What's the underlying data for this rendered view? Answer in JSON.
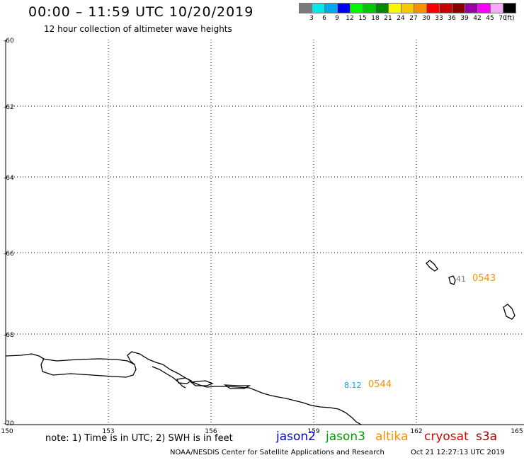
{
  "header": {
    "title": "00:00 – 11:59 UTC 10/20/2019",
    "subtitle": "12 hour collection of altimeter wave heights"
  },
  "colorbar": {
    "colors": [
      "#7b7b7b",
      "#00e8e8",
      "#00a8f0",
      "#0000f8",
      "#00f800",
      "#00c800",
      "#008800",
      "#f8f800",
      "#f8c800",
      "#f89000",
      "#f80000",
      "#c80000",
      "#880000",
      "#9800a8",
      "#f800f8",
      "#f8a8f8",
      "#000000"
    ],
    "labels": [
      "3",
      "6",
      "9",
      "12",
      "15",
      "18",
      "21",
      "24",
      "27",
      "30",
      "33",
      "36",
      "39",
      "42",
      "45",
      "70"
    ],
    "unit": "(ft)"
  },
  "map": {
    "lon_ticks": [
      "150",
      "153",
      "156",
      "159",
      "162",
      "165"
    ],
    "lat_ticks": [
      "-60",
      "-62",
      "-64",
      "-66",
      "-68",
      "-70"
    ]
  },
  "observations": [
    {
      "value": "41",
      "time": "0543",
      "value_color": "#7b7b7b",
      "time_color": "#f89000"
    },
    {
      "value": "8.12",
      "time": "0544",
      "value_color": "#00a8f0",
      "time_color": "#f89000"
    }
  ],
  "footer": {
    "note": "note: 1) Time is in UTC; 2) SWH is in feet",
    "satellites": [
      {
        "name": "jason2",
        "color": "#0000d0"
      },
      {
        "name": "jason3",
        "color": "#00a000"
      },
      {
        "name": "altika",
        "color": "#f89000"
      },
      {
        "name": "cryosat",
        "color": "#e00000"
      },
      {
        "name": "s3a",
        "color": "#a00000"
      }
    ],
    "credit": "NOAA/NESDIS Center for Satellite Applications and Research",
    "date": "Oct 21 12:27:13 UTC 2019"
  }
}
